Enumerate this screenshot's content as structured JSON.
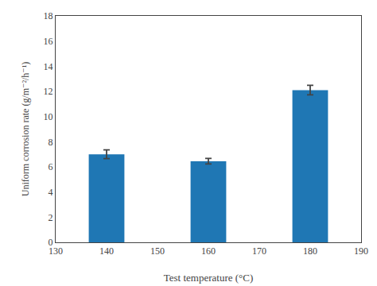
{
  "chart_data": {
    "type": "bar",
    "x": [
      140,
      160,
      180
    ],
    "values": [
      7.0,
      6.45,
      12.1
    ],
    "errors": [
      0.35,
      0.22,
      0.38
    ],
    "xlabel": "Test temperature (°C)",
    "ylabel": "Uniform corrosion rate (g/m⁻²/h⁻¹)",
    "xlim": [
      130,
      190
    ],
    "xticks": [
      130,
      140,
      150,
      160,
      170,
      180,
      190
    ],
    "ylim": [
      0,
      18
    ],
    "yticks": [
      0,
      2,
      4,
      6,
      8,
      10,
      12,
      14,
      16,
      18
    ],
    "grid": false
  }
}
